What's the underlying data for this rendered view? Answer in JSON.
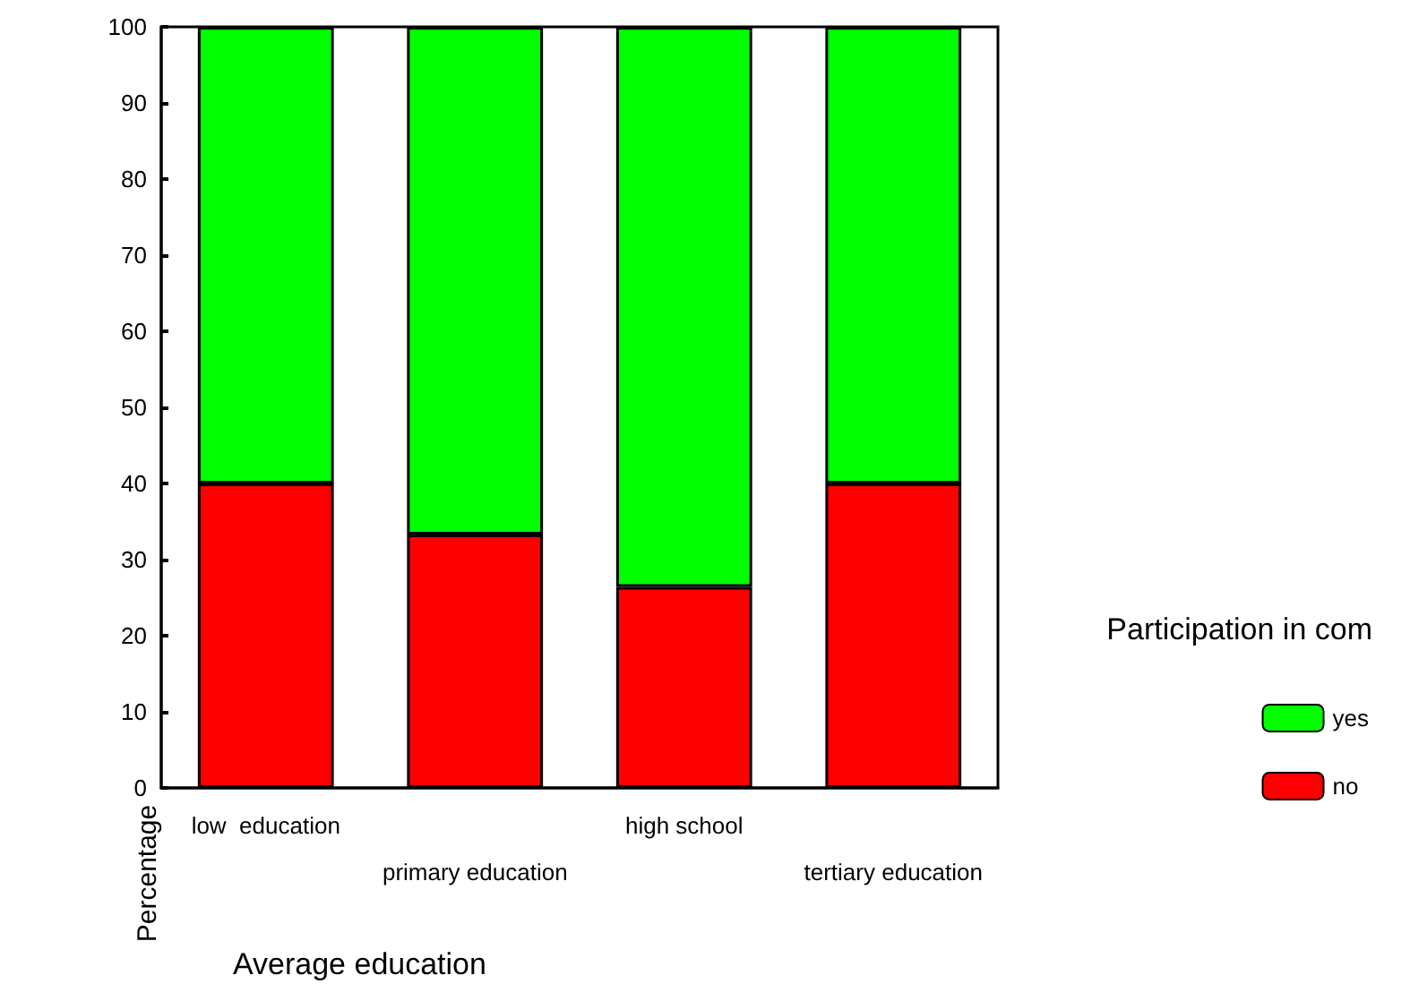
{
  "chart_data": {
    "type": "bar",
    "stacked": true,
    "xlabel": "Average education",
    "ylabel": "Percentage",
    "legend_title": "Participation in com",
    "legend": "right",
    "grid": false,
    "categories": [
      "low  education",
      "primary education",
      "high school",
      "tertiary education"
    ],
    "series": [
      {
        "name": "no",
        "color": "#ff0000",
        "values": [
          40,
          33.3,
          26.4,
          40
        ]
      },
      {
        "name": "yes",
        "color": "#00ff00",
        "values": [
          60,
          66.7,
          73.6,
          60
        ]
      }
    ],
    "ylim": [
      0,
      100
    ],
    "yticks": [
      0,
      10,
      20,
      30,
      40,
      50,
      60,
      70,
      80,
      90,
      100
    ]
  }
}
